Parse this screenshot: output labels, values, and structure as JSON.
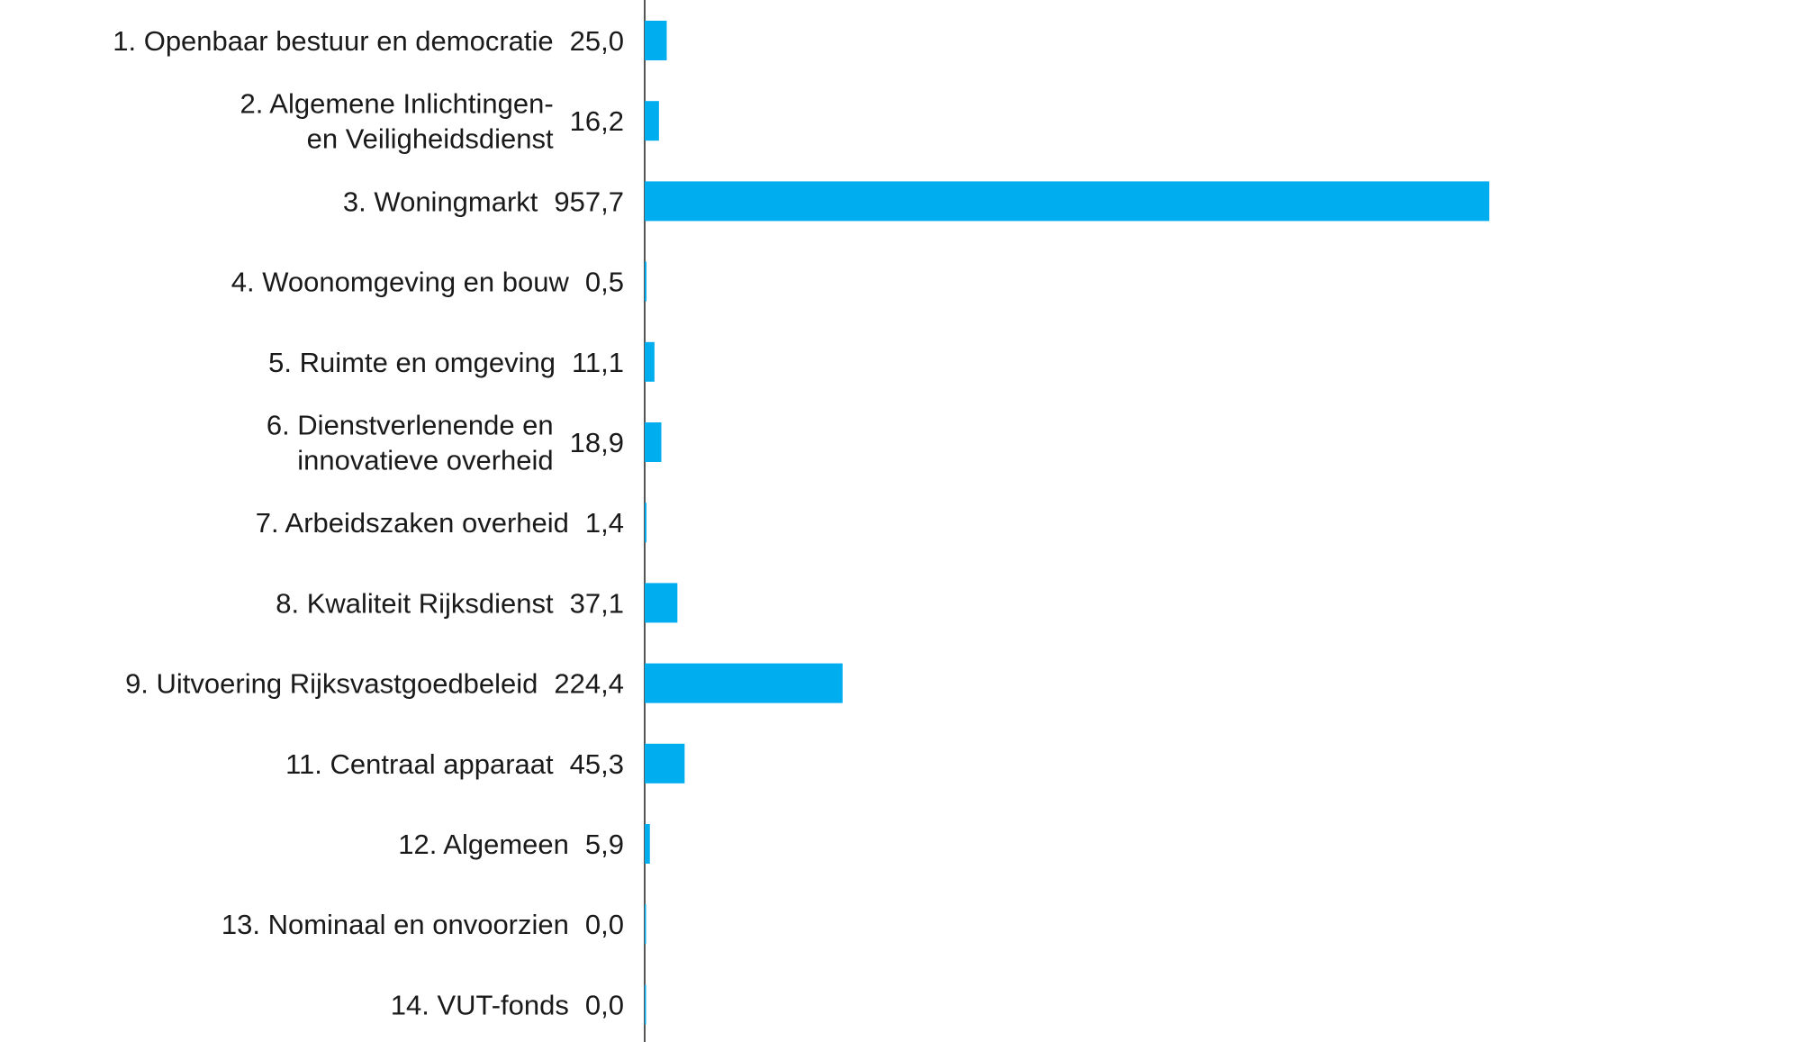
{
  "chart_data": {
    "type": "bar",
    "orientation": "horizontal",
    "categories": [
      [
        "1. Openbaar bestuur en democratie"
      ],
      [
        "2. Algemene Inlichtingen-",
        "en Veiligheidsdienst"
      ],
      [
        "3.  Woningmarkt"
      ],
      [
        "4. Woonomgeving en bouw"
      ],
      [
        "5. Ruimte en omgeving"
      ],
      [
        "6. Dienstverlenende en",
        "innovatieve overheid"
      ],
      [
        "7. Arbeidszaken overheid"
      ],
      [
        "8. Kwaliteit Rijksdienst"
      ],
      [
        "9. Uitvoering Rijksvastgoedbeleid"
      ],
      [
        "11. Centraal apparaat"
      ],
      [
        "12. Algemeen"
      ],
      [
        "13. Nominaal en onvoorzien"
      ],
      [
        "14. VUT-fonds"
      ]
    ],
    "values": [
      25.0,
      16.2,
      957.7,
      0.5,
      11.1,
      18.9,
      1.4,
      37.1,
      224.4,
      45.3,
      5.9,
      0.0,
      0.0
    ],
    "value_labels": [
      "25,0",
      "16,2",
      "957,7",
      "0,5",
      "11,1",
      "18,9",
      "1,4",
      "37,1",
      "224,4",
      "45,3",
      "5,9",
      "0,0",
      "0,0"
    ],
    "xlim": [
      0,
      1000
    ],
    "grid": false,
    "legend": "none",
    "bar_color": "#00AEEF",
    "text_color": "#1a1a1a",
    "axis_color": "#555555"
  }
}
